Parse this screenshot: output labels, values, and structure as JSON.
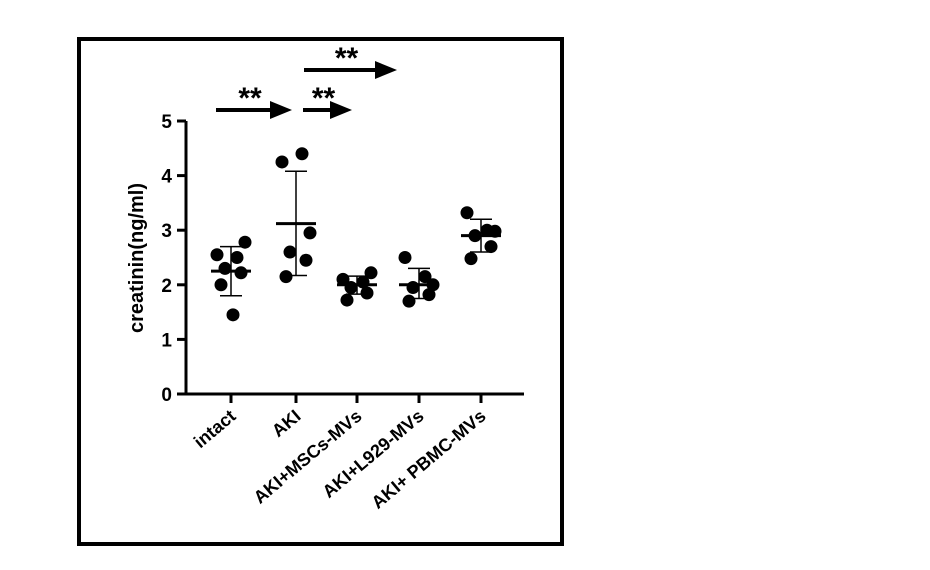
{
  "chart_data": {
    "type": "scatter",
    "ylabel": "creatinin(ng/ml)",
    "xlabel": "",
    "ylim": [
      0,
      5
    ],
    "yticks": [
      0,
      1,
      2,
      3,
      4,
      5
    ],
    "categories": [
      "intact",
      "AKI",
      "AKI+MSCs-MVs",
      "AKI+L929-MVs",
      "AKI+ PBMC-MVs"
    ],
    "groups": [
      {
        "category": "intact",
        "mean": 2.25,
        "sd_upper": 2.7,
        "sd_lower": 1.8,
        "points": [
          2.55,
          2.5,
          2.78,
          2.3,
          2.22,
          2.0,
          1.45
        ]
      },
      {
        "category": "AKI",
        "mean": 3.12,
        "sd_upper": 4.08,
        "sd_lower": 2.17,
        "points": [
          4.25,
          4.4,
          2.95,
          2.6,
          2.45,
          2.15
        ]
      },
      {
        "category": "AKI+MSCs-MVs",
        "mean": 2.0,
        "sd_upper": 2.16,
        "sd_lower": 1.83,
        "points": [
          2.1,
          2.05,
          2.22,
          1.95,
          1.85,
          1.72
        ]
      },
      {
        "category": "AKI+L929-MVs",
        "mean": 2.0,
        "sd_upper": 2.3,
        "sd_lower": 1.75,
        "points": [
          2.5,
          2.15,
          2.0,
          1.95,
          1.82,
          1.7
        ]
      },
      {
        "category": "AKI+ PBMC-MVs",
        "mean": 2.9,
        "sd_upper": 3.2,
        "sd_lower": 2.6,
        "points": [
          3.32,
          3.0,
          2.98,
          2.9,
          2.7,
          2.48
        ]
      }
    ],
    "annotations": [
      {
        "text": "**",
        "from": "intact",
        "to": "AKI",
        "level": 1
      },
      {
        "text": "**",
        "from": "AKI+MSCs-MVs",
        "to": "AKI+MSCs-MVs",
        "level": 1
      },
      {
        "text": "**",
        "from": "AKI+MSCs-MVs",
        "to": "AKI+L929-MVs",
        "level": 2
      }
    ],
    "grid": false,
    "legend": "none"
  },
  "colors": {
    "marker": "#000000",
    "axis": "#000000",
    "background": "#ffffff"
  }
}
